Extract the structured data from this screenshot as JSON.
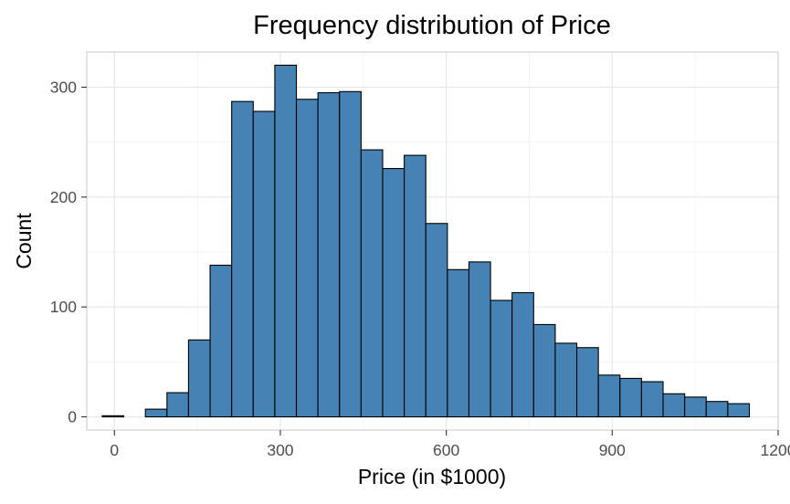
{
  "chart_data": {
    "type": "bar",
    "subtype": "histogram",
    "title": "Frequency distribution of Price",
    "xlabel": "Price (in $1000)",
    "ylabel": "Count",
    "xlim": [
      -50,
      1200
    ],
    "ylim": [
      -12,
      332
    ],
    "x_ticks": [
      0,
      300,
      600,
      900,
      1200
    ],
    "y_ticks": [
      0,
      100,
      200,
      300
    ],
    "x_minor_ticks": [
      150,
      450,
      750,
      1050
    ],
    "y_minor_ticks": [
      50,
      150,
      250
    ],
    "bin_width": 39.0,
    "bins": [
      {
        "x0": -22,
        "x1": 17,
        "count": 1
      },
      {
        "x0": 17,
        "x1": 56,
        "count": 0
      },
      {
        "x0": 56,
        "x1": 95,
        "count": 7
      },
      {
        "x0": 95,
        "x1": 134,
        "count": 22
      },
      {
        "x0": 134,
        "x1": 173,
        "count": 70
      },
      {
        "x0": 173,
        "x1": 212,
        "count": 138
      },
      {
        "x0": 212,
        "x1": 251,
        "count": 287
      },
      {
        "x0": 251,
        "x1": 290,
        "count": 278
      },
      {
        "x0": 290,
        "x1": 329,
        "count": 320
      },
      {
        "x0": 329,
        "x1": 368,
        "count": 289
      },
      {
        "x0": 368,
        "x1": 407,
        "count": 295
      },
      {
        "x0": 407,
        "x1": 446,
        "count": 296
      },
      {
        "x0": 446,
        "x1": 485,
        "count": 243
      },
      {
        "x0": 485,
        "x1": 524,
        "count": 226
      },
      {
        "x0": 524,
        "x1": 563,
        "count": 238
      },
      {
        "x0": 563,
        "x1": 602,
        "count": 176
      },
      {
        "x0": 602,
        "x1": 641,
        "count": 134
      },
      {
        "x0": 641,
        "x1": 680,
        "count": 141
      },
      {
        "x0": 680,
        "x1": 719,
        "count": 106
      },
      {
        "x0": 719,
        "x1": 758,
        "count": 113
      },
      {
        "x0": 758,
        "x1": 797,
        "count": 84
      },
      {
        "x0": 797,
        "x1": 836,
        "count": 67
      },
      {
        "x0": 836,
        "x1": 875,
        "count": 63
      },
      {
        "x0": 875,
        "x1": 914,
        "count": 38
      },
      {
        "x0": 914,
        "x1": 953,
        "count": 35
      },
      {
        "x0": 953,
        "x1": 992,
        "count": 32
      },
      {
        "x0": 992,
        "x1": 1031,
        "count": 21
      },
      {
        "x0": 1031,
        "x1": 1070,
        "count": 18
      },
      {
        "x0": 1070,
        "x1": 1109,
        "count": 14
      },
      {
        "x0": 1109,
        "x1": 1148,
        "count": 12
      }
    ],
    "grid": true,
    "legend": "none",
    "colors": {
      "bar_fill": "#4682B4",
      "bar_outline": "#000000",
      "background": "#FFFFFF",
      "grid": "#E6E6E6",
      "panel_border": "#CCCCCC"
    }
  }
}
